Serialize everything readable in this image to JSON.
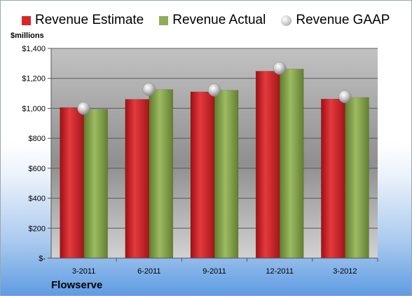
{
  "chart_data": {
    "type": "bar",
    "title": "",
    "unit_label": "$millions",
    "company": "Flowserve",
    "categories": [
      "3-2011",
      "6-2011",
      "9-2011",
      "12-2011",
      "3-2012"
    ],
    "series": [
      {
        "name": "Revenue Estimate",
        "kind": "bar",
        "color": "#d9262b",
        "values": [
          1005,
          1060,
          1110,
          1248,
          1062
        ]
      },
      {
        "name": "Revenue Actual",
        "kind": "bar",
        "color": "#8fad55",
        "values": [
          993,
          1125,
          1120,
          1262,
          1072
        ]
      },
      {
        "name": "Revenue GAAP",
        "kind": "marker",
        "color": "#c8c8c8",
        "values": [
          1000,
          1127,
          1122,
          1268,
          1078
        ]
      }
    ],
    "ylim": [
      0,
      1400
    ],
    "yticks": [
      0,
      200,
      400,
      600,
      800,
      1000,
      1200,
      1400
    ],
    "ytick_labels": [
      "$-",
      "$200",
      "$400",
      "$600",
      "$800",
      "$1,000",
      "$1,200",
      "$1,400"
    ],
    "grid": true,
    "legend_position": "top"
  }
}
